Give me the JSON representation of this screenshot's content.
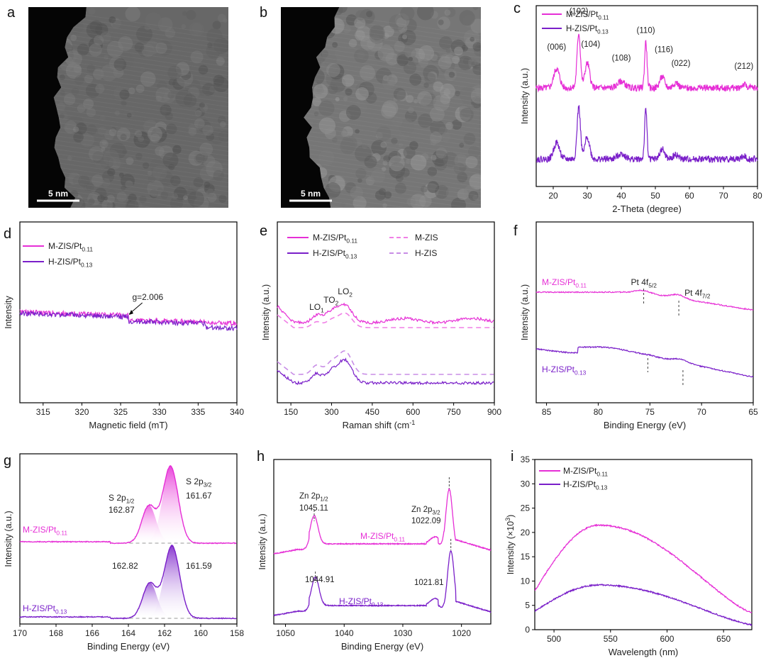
{
  "colors": {
    "magenta": "#e62fd6",
    "purple": "#7a1fc9",
    "magenta_light": "#f07fe6",
    "purple_light": "#c88de6"
  },
  "chart_data": [
    {
      "id": "a",
      "type": "image",
      "panel_label": "a",
      "scale_bar": "5 nm",
      "contrast": 0.55
    },
    {
      "id": "b",
      "type": "image",
      "panel_label": "b",
      "scale_bar": "5 nm",
      "contrast": 0.8
    },
    {
      "id": "c",
      "type": "line",
      "panel_label": "c",
      "xlabel": "2-Theta (degree)",
      "ylabel": "Intensity (a.u.)",
      "xlim": [
        15,
        80
      ],
      "xticks": [
        20,
        30,
        40,
        50,
        60,
        70,
        80
      ],
      "series": [
        {
          "name_main": "M-ZIS/Pt",
          "name_sub": "0.11",
          "color": "#e62fd6",
          "baseline": 1.6,
          "noise": 0.06,
          "peaks": [
            [
              21,
              0.35,
              1.2
            ],
            [
              27.5,
              1.0,
              0.7
            ],
            [
              30,
              0.45,
              1.0
            ],
            [
              40,
              0.12,
              1.5
            ],
            [
              47.2,
              0.85,
              0.5
            ],
            [
              52,
              0.2,
              1.0
            ],
            [
              56,
              0.1,
              1.0
            ],
            [
              76,
              0.06,
              1.0
            ]
          ]
        },
        {
          "name_main": "H-ZIS/Pt",
          "name_sub": "0.13",
          "color": "#7a1fc9",
          "baseline": 0.3,
          "noise": 0.06,
          "peaks": [
            [
              21,
              0.3,
              1.2
            ],
            [
              27.5,
              0.95,
              0.7
            ],
            [
              30,
              0.4,
              1.0
            ],
            [
              40,
              0.1,
              1.5
            ],
            [
              47.2,
              0.9,
              0.5
            ],
            [
              52,
              0.18,
              1.0
            ],
            [
              56,
              0.08,
              1.0
            ],
            [
              76,
              0.05,
              1.0
            ]
          ]
        }
      ],
      "annotations": [
        {
          "text": "(006)",
          "x": 21,
          "y": 2.3
        },
        {
          "text": "(102)",
          "x": 27.5,
          "y": 2.95
        },
        {
          "text": "(104)",
          "x": 31,
          "y": 2.35
        },
        {
          "text": "(108)",
          "x": 40,
          "y": 2.1
        },
        {
          "text": "(110)",
          "x": 47.2,
          "y": 2.6
        },
        {
          "text": "(116)",
          "x": 52.5,
          "y": 2.25
        },
        {
          "text": "(022)",
          "x": 57.5,
          "y": 2.0
        },
        {
          "text": "(212)",
          "x": 76,
          "y": 1.95
        }
      ]
    },
    {
      "id": "d",
      "type": "line",
      "panel_label": "d",
      "xlabel": "Magnetic field (mT)",
      "ylabel": "Intensity",
      "xlim": [
        312,
        340
      ],
      "xticks": [
        315,
        320,
        325,
        330,
        335,
        340
      ],
      "series": [
        {
          "name_main": "M-ZIS/Pt",
          "name_sub": "0.11",
          "color": "#e62fd6"
        },
        {
          "name_main": "H-ZIS/Pt",
          "name_sub": "0.13",
          "color": "#7a1fc9"
        }
      ],
      "annotations": [
        {
          "text": "g=2.006",
          "x": 326
        }
      ]
    },
    {
      "id": "e",
      "type": "line",
      "panel_label": "e",
      "xlabel_main": "Raman shift (cm",
      "xlabel_sup": "-1",
      "xlabel_tail": ")",
      "ylabel": "Intensity (a.u.)",
      "xlim": [
        100,
        900
      ],
      "xticks": [
        150,
        300,
        450,
        600,
        750,
        900
      ],
      "series": [
        {
          "name_main": "M-ZIS/Pt",
          "name_sub": "0.11",
          "color": "#e62fd6",
          "style": "solid"
        },
        {
          "name_main": "H-ZIS/Pt",
          "name_sub": "0.13",
          "color": "#7a1fc9",
          "style": "solid"
        },
        {
          "name_main": "M-ZIS",
          "name_sub": "",
          "color": "#f07fe6",
          "style": "dashed"
        },
        {
          "name_main": "H-ZIS",
          "name_sub": "",
          "color": "#c88de6",
          "style": "dashed"
        }
      ],
      "annotations": [
        {
          "main": "LO",
          "sub": "1",
          "x": 245
        },
        {
          "main": "TO",
          "sub": "2",
          "x": 298
        },
        {
          "main": "LO",
          "sub": "2",
          "x": 350
        }
      ]
    },
    {
      "id": "f",
      "type": "line",
      "panel_label": "f",
      "xlabel": "Binding Energy (eV)",
      "ylabel": "Intensity (a.u.)",
      "xlim": [
        86,
        65
      ],
      "xticks": [
        85,
        80,
        75,
        70,
        65
      ],
      "series": [
        {
          "name_main": "M-ZIS/Pt",
          "name_sub": "0.11",
          "color": "#e62fd6"
        },
        {
          "name_main": "H-ZIS/Pt",
          "name_sub": "0.13",
          "color": "#7a1fc9"
        }
      ],
      "annotations": [
        {
          "main": "Pt 4f",
          "sub": "5/2",
          "x": 75.6
        },
        {
          "main": "Pt 4f",
          "sub": "7/2",
          "x": 72.2
        }
      ]
    },
    {
      "id": "g",
      "type": "line",
      "panel_label": "g",
      "xlabel": "Binding Energy (eV)",
      "ylabel": "Intensity (a.u.)",
      "xlim": [
        170,
        158
      ],
      "xticks": [
        170,
        168,
        166,
        164,
        162,
        160,
        158
      ],
      "series": [
        {
          "name_main": "M-ZIS/Pt",
          "name_sub": "0.11",
          "color": "#e62fd6",
          "peak_2p1": 162.87,
          "peak_2p3": 161.67
        },
        {
          "name_main": "H-ZIS/Pt",
          "name_sub": "0.13",
          "color": "#7a1fc9",
          "peak_2p1": 162.82,
          "peak_2p3": 161.59
        }
      ],
      "annotations": [
        {
          "main": "S 2p",
          "sub": "1/2",
          "value": "162.87"
        },
        {
          "main": "S 2p",
          "sub": "3/2",
          "value": "161.67"
        },
        {
          "value": "162.82"
        },
        {
          "value": "161.59"
        }
      ]
    },
    {
      "id": "h",
      "type": "line",
      "panel_label": "h",
      "xlabel": "Binding Energy (eV)",
      "ylabel": "Intensity (a.u.)",
      "xlim": [
        1052,
        1015
      ],
      "xticks": [
        1050,
        1040,
        1030,
        1020
      ],
      "series": [
        {
          "name_main": "M-ZIS/Pt",
          "name_sub": "0.11",
          "color": "#e62fd6",
          "p1": 1045.11,
          "p2": 1022.09
        },
        {
          "name_main": "H-ZIS/Pt",
          "name_sub": "0.13",
          "color": "#7a1fc9",
          "p1": 1044.91,
          "p2": 1021.81
        }
      ],
      "annotations": [
        {
          "main": "Zn 2p",
          "sub": "1/2",
          "value": "1045.11"
        },
        {
          "main": "Zn 2p",
          "sub": "3/2",
          "value": "1022.09"
        },
        {
          "value": "1044.91"
        },
        {
          "value": "1021.81"
        }
      ]
    },
    {
      "id": "i",
      "type": "line",
      "panel_label": "i",
      "xlabel": "Wavelength (nm)",
      "ylabel_main": "Intensity (×10",
      "ylabel_sup": "3",
      "ylabel_tail": ")",
      "xlim": [
        483,
        675
      ],
      "ylim": [
        0,
        35
      ],
      "xticks": [
        500,
        550,
        600,
        650
      ],
      "yticks": [
        0,
        5,
        10,
        15,
        20,
        25,
        30,
        35
      ],
      "series": [
        {
          "name_main": "M-ZIS/Pt",
          "name_sub": "0.11",
          "color": "#e62fd6",
          "peak_x": 540,
          "peak_y": 21.5,
          "left_y": 8,
          "right_y": 3.5
        },
        {
          "name_main": "H-ZIS/Pt",
          "name_sub": "0.13",
          "color": "#7a1fc9",
          "peak_x": 540,
          "peak_y": 9.2,
          "left_y": 3.8,
          "right_y": 1.0
        }
      ]
    }
  ]
}
